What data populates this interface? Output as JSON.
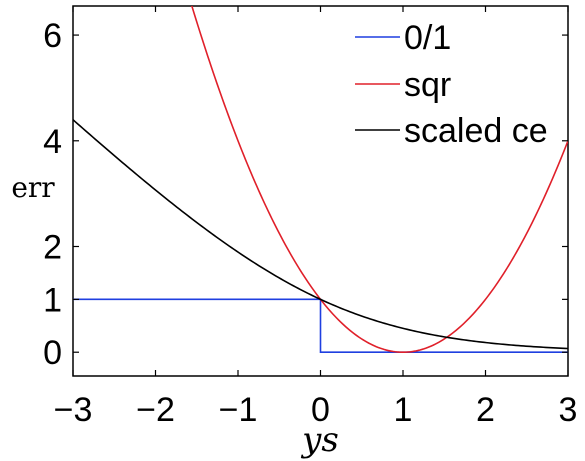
{
  "chart_data": {
    "type": "line",
    "xlabel": "ys",
    "ylabel": "err",
    "xlim": [
      -3,
      3
    ],
    "ylim": [
      -0.45,
      6.55
    ],
    "x_ticks": [
      "−3",
      "−2",
      "−1",
      "0",
      "1",
      "2",
      "3"
    ],
    "y_ticks": [
      "0",
      "1",
      "2",
      "4",
      "6"
    ],
    "legend_placement": "top-right",
    "grid": false,
    "series": [
      {
        "name": "0/1",
        "color": "#1f3fe0",
        "points": [
          [
            -3,
            1
          ],
          [
            0,
            1
          ],
          [
            0,
            0
          ],
          [
            3,
            0
          ]
        ]
      },
      {
        "name": "sqr",
        "color": "#e0202a",
        "points": [
          [
            -1.55,
            6.5
          ],
          [
            -1.5,
            6.25
          ],
          [
            -1,
            4
          ],
          [
            -0.5,
            2.25
          ],
          [
            0,
            1
          ],
          [
            0.5,
            0.25
          ],
          [
            1,
            0
          ],
          [
            1.5,
            0.25
          ],
          [
            2,
            1
          ],
          [
            2.5,
            2.25
          ],
          [
            3,
            4
          ]
        ]
      },
      {
        "name": "scaled ce",
        "color": "#000000",
        "points": [
          [
            -3,
            4.37
          ],
          [
            -2.5,
            3.65
          ],
          [
            -2,
            2.94
          ],
          [
            -1.5,
            2.29
          ],
          [
            -1,
            1.88
          ],
          [
            -0.5,
            1.37
          ],
          [
            0,
            1
          ],
          [
            0.5,
            0.68
          ],
          [
            1,
            0.45
          ],
          [
            1.5,
            0.29
          ],
          [
            2,
            0.18
          ],
          [
            2.5,
            0.11
          ],
          [
            3,
            0.07
          ]
        ]
      }
    ]
  }
}
